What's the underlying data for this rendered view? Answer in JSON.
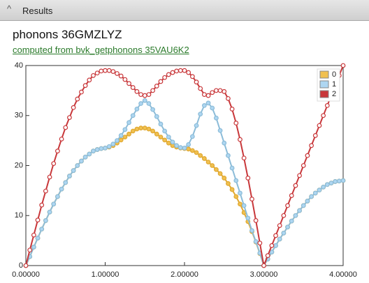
{
  "panel": {
    "title": "Results"
  },
  "heading": "phonons 36GMZLYZ",
  "link": "computed from bvk_getphonons 35VAU6K2",
  "chart_data": {
    "type": "line",
    "markers": true,
    "legend": "top-right",
    "xlim": [
      0,
      4
    ],
    "ylim": [
      0,
      40
    ],
    "xticks": [
      {
        "value": 0,
        "label": "0.00000"
      },
      {
        "value": 1,
        "label": "1.00000"
      },
      {
        "value": 2,
        "label": "2.00000"
      },
      {
        "value": 3,
        "label": "3.00000"
      },
      {
        "value": 4,
        "label": "4.00000"
      }
    ],
    "yticks": [
      0,
      10,
      20,
      30,
      40
    ],
    "x": [
      0,
      0.05,
      0.1,
      0.15,
      0.2,
      0.25,
      0.3,
      0.35,
      0.4,
      0.45,
      0.5,
      0.55,
      0.6,
      0.65,
      0.7,
      0.75,
      0.8,
      0.85,
      0.9,
      0.95,
      1,
      1.05,
      1.1,
      1.15,
      1.2,
      1.25,
      1.3,
      1.35,
      1.4,
      1.45,
      1.5,
      1.55,
      1.6,
      1.65,
      1.7,
      1.75,
      1.8,
      1.85,
      1.9,
      1.95,
      2,
      2.05,
      2.1,
      2.15,
      2.2,
      2.25,
      2.3,
      2.35,
      2.4,
      2.45,
      2.5,
      2.55,
      2.6,
      2.65,
      2.7,
      2.75,
      2.8,
      2.85,
      2.9,
      2.95,
      3,
      3.05,
      3.1,
      3.15,
      3.2,
      3.25,
      3.3,
      3.35,
      3.4,
      3.45,
      3.5,
      3.55,
      3.6,
      3.65,
      3.7,
      3.75,
      3.8,
      3.85,
      3.9,
      3.95,
      4
    ],
    "series": [
      {
        "name": "0",
        "color": "#f0c050",
        "stroke": "#e0a830",
        "values": [
          0,
          1.8,
          3.7,
          5.5,
          7.3,
          9.0,
          10.7,
          12.3,
          13.8,
          15.3,
          16.6,
          17.9,
          19.0,
          20.0,
          20.9,
          21.7,
          22.3,
          22.9,
          23.2,
          23.4,
          23.5,
          23.7,
          24.0,
          24.5,
          25.1,
          25.7,
          26.3,
          26.9,
          27.3,
          27.5,
          27.5,
          27.3,
          26.9,
          26.3,
          25.7,
          25.1,
          24.5,
          24.0,
          23.7,
          23.5,
          23.4,
          23.3,
          23.0,
          22.6,
          22.0,
          21.4,
          20.7,
          20.0,
          19.2,
          18.4,
          17.5,
          16.4,
          15.2,
          13.8,
          12.3,
          10.6,
          8.8,
          6.8,
          4.7,
          2.4,
          0,
          1.3,
          2.7,
          4.0,
          5.3,
          6.5,
          7.7,
          8.9,
          10.0,
          11.0,
          12.0,
          12.9,
          13.8,
          14.5,
          15.1,
          15.7,
          16.2,
          16.5,
          16.8,
          16.9,
          17.0
        ]
      },
      {
        "name": "1",
        "color": "#aed6f1",
        "stroke": "#8cbcd8",
        "values": [
          0,
          1.8,
          3.7,
          5.5,
          7.3,
          9.0,
          10.7,
          12.3,
          13.8,
          15.3,
          16.6,
          17.9,
          19.0,
          20.0,
          20.9,
          21.7,
          22.3,
          22.9,
          23.2,
          23.4,
          23.5,
          23.8,
          24.3,
          25.0,
          26.0,
          27.2,
          28.6,
          30.0,
          31.3,
          32.4,
          33.0,
          32.4,
          31.2,
          29.8,
          28.3,
          26.9,
          25.7,
          24.7,
          24.0,
          23.6,
          23.5,
          24.2,
          25.8,
          28.0,
          30.3,
          32.0,
          32.5,
          31.5,
          29.5,
          27.0,
          24.5,
          22.0,
          19.5,
          17.0,
          14.5,
          12.0,
          9.5,
          7.0,
          4.8,
          2.5,
          0,
          1.3,
          2.7,
          4.0,
          5.3,
          6.5,
          7.7,
          8.9,
          10.0,
          11.0,
          12.0,
          12.9,
          13.8,
          14.5,
          15.1,
          15.7,
          16.2,
          16.5,
          16.8,
          16.9,
          17.0
        ]
      },
      {
        "name": "2",
        "color": "#c8373a",
        "stroke": "#c8373a",
        "values": [
          0,
          3.1,
          6.1,
          9.1,
          12.1,
          14.9,
          17.7,
          20.4,
          22.9,
          25.3,
          27.6,
          29.6,
          31.6,
          33.3,
          34.7,
          36.0,
          37.1,
          38.0,
          38.5,
          38.9,
          39.0,
          39.0,
          38.8,
          38.4,
          37.9,
          37.2,
          36.4,
          35.6,
          34.8,
          34.2,
          34.0,
          34.2,
          35.0,
          35.9,
          36.8,
          37.6,
          38.2,
          38.6,
          38.9,
          39.0,
          39.0,
          38.6,
          37.8,
          36.7,
          35.4,
          34.2,
          34.0,
          34.6,
          35.0,
          35.0,
          34.8,
          33.4,
          31.3,
          28.5,
          25.2,
          21.5,
          17.5,
          13.3,
          9.0,
          4.5,
          0,
          2,
          4,
          6,
          8,
          10,
          12,
          14,
          16,
          18,
          20,
          22,
          24,
          26,
          28,
          30,
          32,
          34,
          36,
          38,
          40
        ]
      }
    ]
  }
}
